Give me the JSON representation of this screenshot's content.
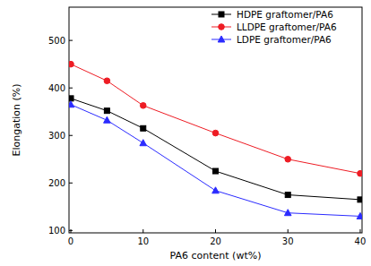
{
  "chart_data": {
    "type": "line",
    "x_label": "PA6 content (wt%)",
    "y_label": "Elongation (%)",
    "x": [
      0,
      5,
      10,
      20,
      30,
      40
    ],
    "series": [
      {
        "name": "HDPE graftomer/PA6",
        "color": "#000000",
        "marker": "square",
        "values": [
          378,
          352,
          315,
          225,
          175,
          165
        ]
      },
      {
        "name": "LLDPE graftomer/PA6",
        "color": "#ee1c24",
        "marker": "circle",
        "values": [
          450,
          415,
          363,
          305,
          250,
          220
        ]
      },
      {
        "name": "LDPE graftomer/PA6",
        "color": "#2b2bff",
        "marker": "triangle",
        "values": [
          365,
          332,
          284,
          184,
          137,
          130
        ]
      }
    ],
    "xlim": [
      -0.25,
      40.25
    ],
    "xticks": [
      0,
      10,
      20,
      30,
      40
    ],
    "ylim": [
      95,
      570
    ],
    "yticks": [
      100,
      200,
      300,
      400,
      500
    ],
    "grid": false,
    "legend": "upper right"
  }
}
